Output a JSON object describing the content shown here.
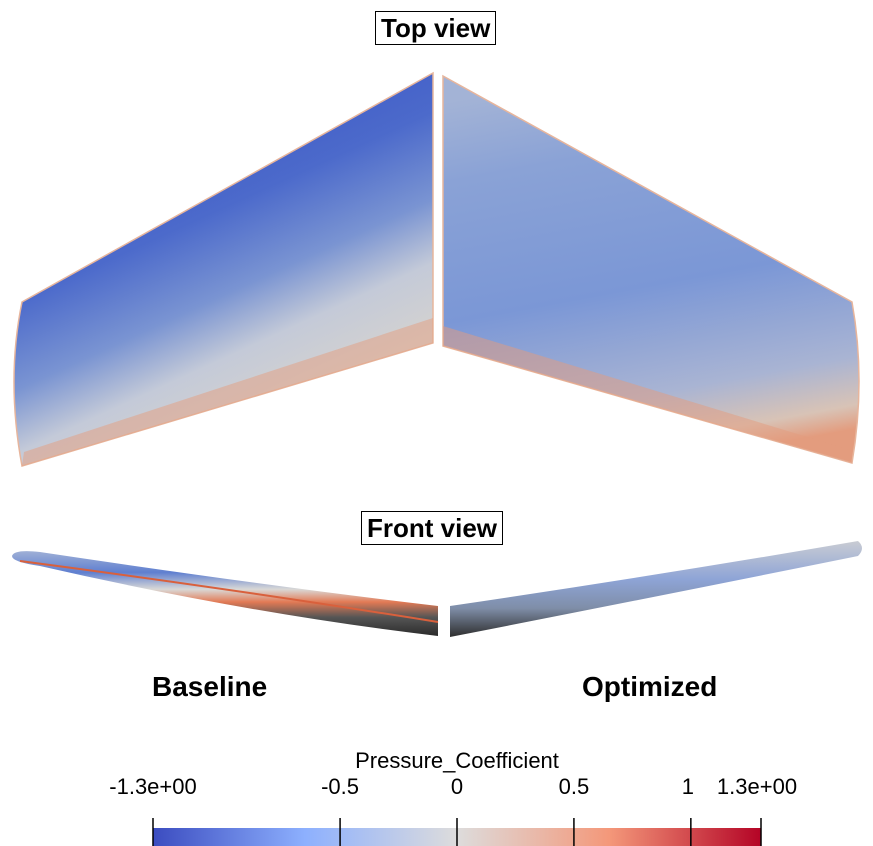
{
  "views": {
    "top_title": "Top view",
    "front_title": "Front view"
  },
  "cases": {
    "left": "Baseline",
    "right": "Optimized"
  },
  "colorbar": {
    "title": "Pressure_Coefficient",
    "min_label": "-1.3e+00",
    "max_label": "1.3e+00",
    "range": [
      -1.3,
      1.3
    ],
    "ticks": [
      {
        "value": -0.5,
        "label": "-0.5"
      },
      {
        "value": 0,
        "label": "0"
      },
      {
        "value": 0.5,
        "label": "0.5"
      },
      {
        "value": 1,
        "label": "1"
      }
    ],
    "colormap": [
      "#3b4cc0",
      "#8db0fe",
      "#dddcdc",
      "#f4987a",
      "#b40426"
    ]
  }
}
